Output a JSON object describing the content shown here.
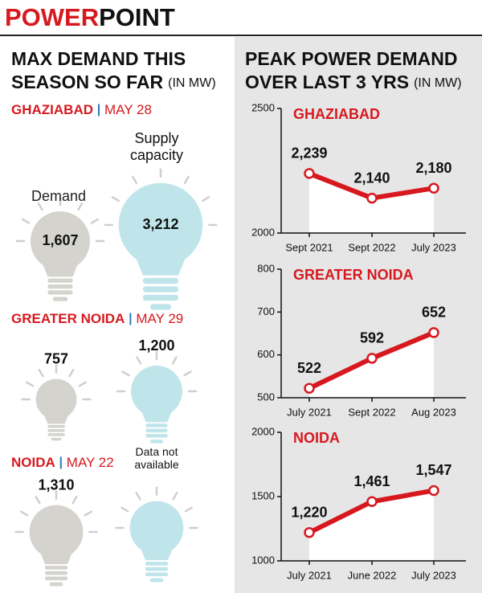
{
  "header": {
    "part1": "POWER",
    "part2": "POINT"
  },
  "chart_data": [
    {
      "type": "bulb",
      "title": [
        "MAX DEMAND THIS",
        "SEASON SO FAR"
      ],
      "unit": "(IN MW)",
      "categories": [
        "GHAZIABAD",
        "GREATER NOIDA",
        "NOIDA"
      ],
      "dates": [
        "MAY 28",
        "MAY 29",
        "MAY 22"
      ],
      "series": [
        {
          "name": "Demand",
          "color": "#d4d3ce",
          "values": [
            1607,
            757,
            1310
          ],
          "value_labels": [
            "1,607",
            "757",
            "1,310"
          ]
        },
        {
          "name": "Supply capacity",
          "color": "#bfe5ea",
          "values": [
            3212,
            1200,
            null
          ],
          "value_labels": [
            "3,212",
            "1,200",
            "Data not available"
          ]
        }
      ]
    },
    {
      "type": "line",
      "title": "GHAZIABAD",
      "categories": [
        "Sept 2021",
        "Sept 2022",
        "July 2023"
      ],
      "values": [
        2239,
        2140,
        2180
      ],
      "value_labels": [
        "2,239",
        "2,140",
        "2,180"
      ],
      "ylim": [
        2000,
        2500
      ],
      "yticks": [
        2000,
        2500
      ],
      "color": "#d7191f"
    },
    {
      "type": "line",
      "title": "GREATER NOIDA",
      "categories": [
        "July 2021",
        "Sept 2022",
        "Aug 2023"
      ],
      "values": [
        522,
        592,
        652
      ],
      "ylim": [
        500,
        800
      ],
      "yticks": [
        500,
        600,
        700,
        800
      ],
      "color": "#d7191f"
    },
    {
      "type": "line",
      "title": "NOIDA",
      "categories": [
        "July 2021",
        "June 2022",
        "July 2023"
      ],
      "values": [
        1220,
        1461,
        1547
      ],
      "value_labels": [
        "1,220",
        "1,461",
        "1,547"
      ],
      "ylim": [
        1000,
        2000
      ],
      "yticks": [
        1000,
        1500,
        2000
      ],
      "color": "#d7191f"
    }
  ],
  "right_panel": {
    "title": [
      "PEAK POWER DEMAND",
      "OVER LAST 3 YRS"
    ],
    "unit": "(IN MW)"
  }
}
